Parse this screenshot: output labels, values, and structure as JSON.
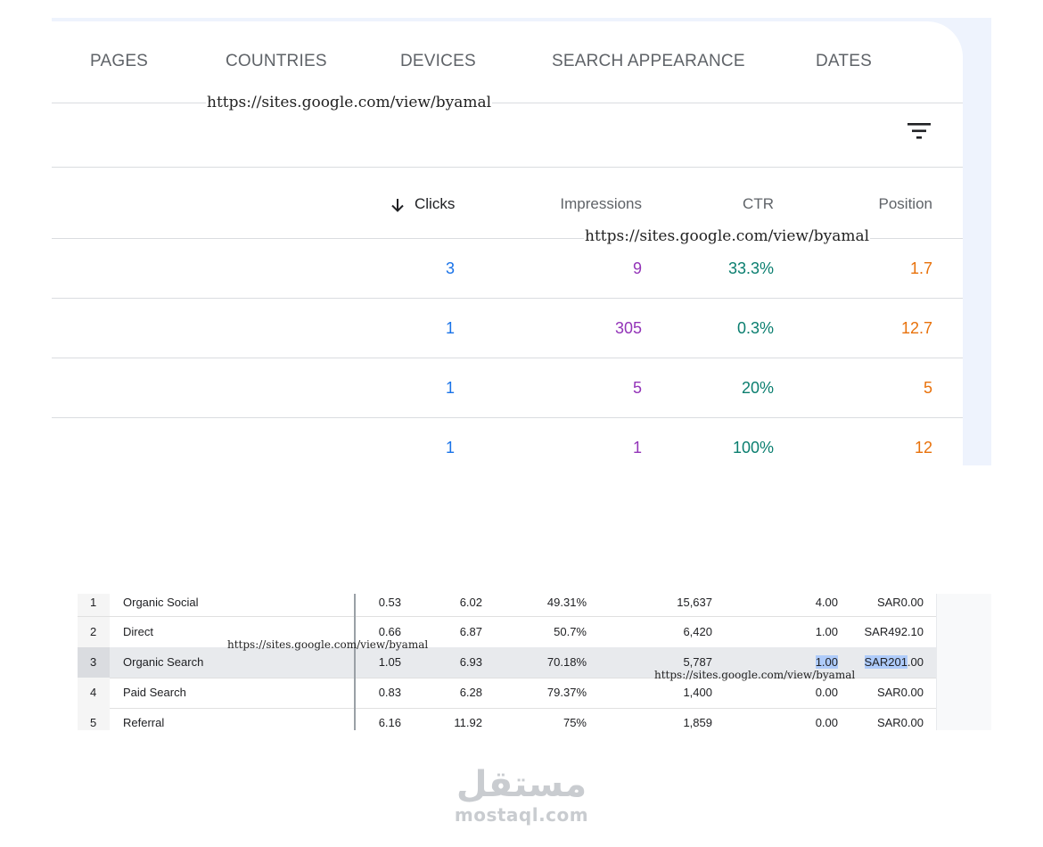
{
  "search_console": {
    "tabs": [
      {
        "label": "PAGES"
      },
      {
        "label": "COUNTRIES"
      },
      {
        "label": "DEVICES"
      },
      {
        "label": "SEARCH APPEARANCE"
      },
      {
        "label": "DATES"
      }
    ],
    "watermark": "https://sites.google.com/view/byamal",
    "columns": {
      "clicks": "Clicks",
      "impressions": "Impressions",
      "ctr": "CTR",
      "position": "Position"
    },
    "colors": {
      "clicks": "#1a73e8",
      "impressions": "#9334b8",
      "ctr": "#0a7e6f",
      "position": "#e8710a"
    },
    "rows": [
      {
        "clicks": "3",
        "impressions": "9",
        "ctr": "33.3%",
        "position": "1.7"
      },
      {
        "clicks": "1",
        "impressions": "305",
        "ctr": "0.3%",
        "position": "12.7"
      },
      {
        "clicks": "1",
        "impressions": "5",
        "ctr": "20%",
        "position": "5"
      },
      {
        "clicks": "1",
        "impressions": "1",
        "ctr": "100%",
        "position": "12"
      }
    ]
  },
  "analytics": {
    "watermark": "https://sites.google.com/view/byamal",
    "rows": [
      {
        "rank": "1",
        "channel": "Organic Social",
        "c1": "0.53",
        "c2": "6.02",
        "c3": "49.31%",
        "c4": "15,637",
        "c5": "4.00",
        "c6": "SAR0.00"
      },
      {
        "rank": "2",
        "channel": "Direct",
        "c1": "0.66",
        "c2": "6.87",
        "c3": "50.7%",
        "c4": "6,420",
        "c5": "1.00",
        "c6": "SAR492.10"
      },
      {
        "rank": "3",
        "channel": "Organic Search",
        "c1": "1.05",
        "c2": "6.93",
        "c3": "70.18%",
        "c4": "5,787",
        "c5": "1.00",
        "c6_selected": "SAR201",
        "c6_rest": ".00"
      },
      {
        "rank": "4",
        "channel": "Paid Search",
        "c1": "0.83",
        "c2": "6.28",
        "c3": "79.37%",
        "c4": "1,400",
        "c5": "0.00",
        "c6": "SAR0.00"
      },
      {
        "rank": "5",
        "channel": "Referral",
        "c1": "6.16",
        "c2": "11.92",
        "c3": "75%",
        "c4": "1,859",
        "c5": "0.00",
        "c6": "SAR0.00"
      }
    ]
  },
  "logo": {
    "arabic": "مستقل",
    "latin": "mostaql.com"
  }
}
